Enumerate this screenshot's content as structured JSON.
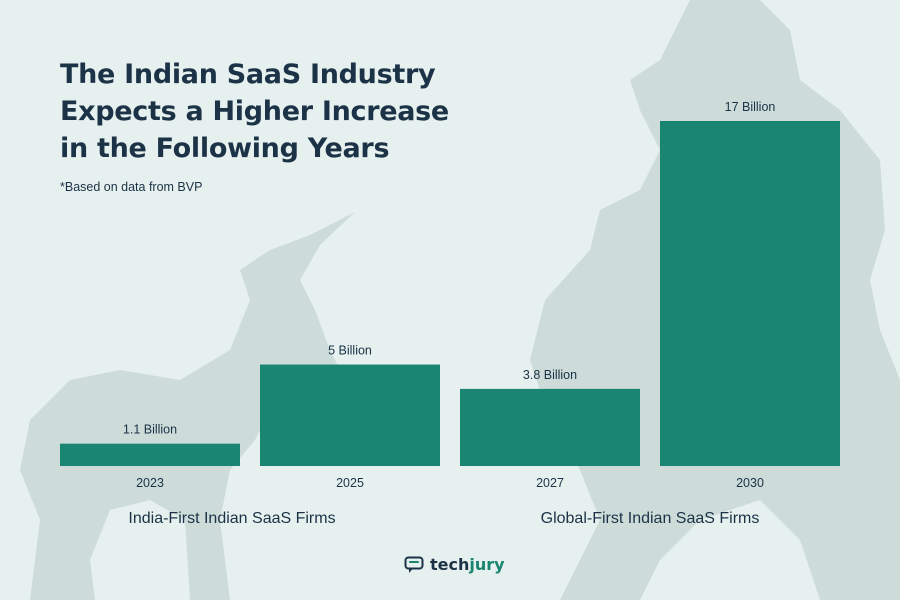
{
  "title_lines": [
    "The Indian SaaS Industry",
    "Expects a Higher Increase",
    "in the Following Years"
  ],
  "subtitle": "*Based on data from BVP",
  "colors": {
    "bar": "#1a8573",
    "background": "#e6f0ee",
    "text": "#1b3247",
    "silhouette": "#c9d9d6"
  },
  "chart_data": {
    "type": "bar",
    "title": "The Indian SaaS Industry Expects a Higher Increase in the Following Years",
    "categories": [
      "2023",
      "2025",
      "2027",
      "2030"
    ],
    "values": [
      1.1,
      5,
      3.8,
      17
    ],
    "data_labels": [
      "1.1 Billion",
      "5 Billion",
      "3.8 Billion",
      "17 Billion"
    ],
    "groups": [
      {
        "label": "India-First Indian SaaS Firms",
        "categories": [
          "2023",
          "2025"
        ]
      },
      {
        "label": "Global-First Indian SaaS Firms",
        "categories": [
          "2027",
          "2030"
        ]
      }
    ],
    "xlabel": "",
    "ylabel": "",
    "ylim": [
      0,
      17
    ],
    "grid": false,
    "legend": "none"
  },
  "brand": {
    "name_prefix": "tech",
    "name_suffix": "jury",
    "icon": "chat-bubble-icon"
  }
}
